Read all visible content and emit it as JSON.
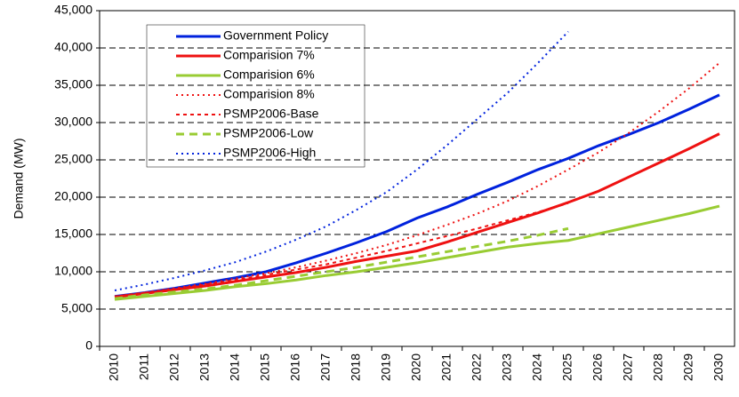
{
  "chart_data": {
    "type": "line",
    "y_label": "Demand (MW)",
    "categories": [
      "2010",
      "2011",
      "2012",
      "2013",
      "2014",
      "2015",
      "2016",
      "2017",
      "2018",
      "2019",
      "2020",
      "2021",
      "2022",
      "2023",
      "2024",
      "2025",
      "2026",
      "2027",
      "2028",
      "2029",
      "2030"
    ],
    "ylim": [
      0,
      45000
    ],
    "yticks": [
      0,
      {
        "value": 5000,
        "label": "5,000"
      },
      {
        "value": 10000,
        "label": "10,000"
      },
      {
        "value": 15000,
        "label": "15,000"
      },
      {
        "value": 20000,
        "label": "20,000"
      },
      {
        "value": 25000,
        "label": "25,000"
      },
      {
        "value": 30000,
        "label": "30,000"
      },
      {
        "value": 35000,
        "label": "35,000"
      },
      {
        "value": 40000,
        "label": "40,000"
      },
      {
        "value": 45000,
        "label": "45,000"
      }
    ],
    "grid": true,
    "series": [
      {
        "name": "Government Policy",
        "color": "#0022dd",
        "dash": "solid",
        "values": [
          6700,
          7200,
          7800,
          8500,
          9200,
          10000,
          11200,
          12500,
          13900,
          15400,
          17200,
          18700,
          20400,
          22000,
          23700,
          25200,
          26900,
          28400,
          30000,
          31800,
          33700
        ]
      },
      {
        "name": "Comparision 7%",
        "color": "#ee1111",
        "dash": "solid",
        "values": [
          6600,
          7100,
          7600,
          8100,
          8700,
          9300,
          9900,
          10600,
          11400,
          12100,
          12800,
          14000,
          15300,
          16600,
          17900,
          19300,
          20800,
          22700,
          24600,
          26500,
          28500
        ]
      },
      {
        "name": "Comparision 6%",
        "color": "#99cc33",
        "dash": "solid",
        "values": [
          6300,
          6700,
          7100,
          7500,
          8000,
          8400,
          8900,
          9500,
          10000,
          10600,
          11200,
          11900,
          12600,
          13300,
          13800,
          14200,
          15100,
          16000,
          16900,
          17800,
          18800
        ]
      },
      {
        "name": "Comparision 8%",
        "color": "#ee1111",
        "dash": "dotted",
        "values": [
          6700,
          7200,
          7800,
          8400,
          9100,
          9800,
          10600,
          11500,
          12500,
          13600,
          14900,
          16300,
          17800,
          19500,
          21500,
          23700,
          26000,
          28600,
          31500,
          34600,
          38000
        ]
      },
      {
        "name": "PSMP2006-Base",
        "color": "#ee1111",
        "dash": "dashed",
        "values": [
          6700,
          7200,
          7700,
          8300,
          8900,
          9600,
          10300,
          11000,
          11900,
          12800,
          13800,
          14800,
          15800,
          16900,
          18000,
          19200,
          null,
          null,
          null,
          null,
          null
        ]
      },
      {
        "name": "PSMP2006-Low",
        "color": "#99cc33",
        "dash": "long",
        "values": [
          6400,
          6900,
          7300,
          7700,
          8200,
          8800,
          9400,
          10000,
          10600,
          11300,
          12000,
          12700,
          13400,
          14100,
          14900,
          15800,
          null,
          null,
          null,
          null,
          null
        ]
      },
      {
        "name": "PSMP2006-High",
        "color": "#0022dd",
        "dash": "dotted",
        "values": [
          7500,
          8300,
          9200,
          10200,
          11300,
          12700,
          14300,
          16100,
          18300,
          20700,
          23700,
          27000,
          30500,
          34000,
          38000,
          42200,
          null,
          null,
          null,
          null,
          null
        ]
      }
    ]
  }
}
